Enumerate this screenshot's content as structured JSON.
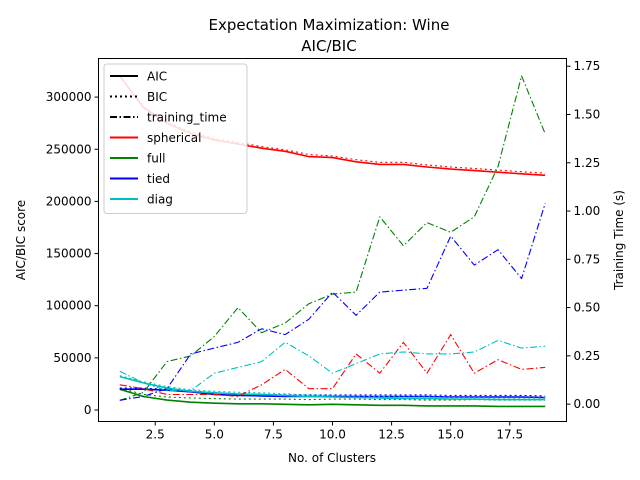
{
  "chart_data": {
    "type": "line",
    "title": "Expectation Maximization: Wine",
    "subtitle": "AIC/BIC",
    "xlabel": "No. of Clusters",
    "ylabel": "AIC/BIC score",
    "y2label": "Training Time (s)",
    "xlim": [
      0.1,
      19.9
    ],
    "ylim": [
      -11000,
      337000
    ],
    "y2lim": [
      -0.09,
      1.79
    ],
    "x_ticks": [
      2.5,
      5.0,
      7.5,
      10.0,
      12.5,
      15.0,
      17.5
    ],
    "y_ticks": [
      0,
      50000,
      100000,
      150000,
      200000,
      250000,
      300000
    ],
    "y2_ticks": [
      0.0,
      0.25,
      0.5,
      0.75,
      1.0,
      1.25,
      1.5,
      1.75
    ],
    "grid": false,
    "legend_position": "top-left",
    "legend": [
      {
        "label": "AIC",
        "color": "#000000",
        "style": "solid",
        "width": 2
      },
      {
        "label": "BIC",
        "color": "#000000",
        "style": "dotted",
        "width": 2
      },
      {
        "label": "training_time",
        "color": "#000000",
        "style": "dashdot",
        "width": 2
      },
      {
        "label": "spherical",
        "color": "#ff0000",
        "style": "solid",
        "width": 2
      },
      {
        "label": "full",
        "color": "#008000",
        "style": "solid",
        "width": 2
      },
      {
        "label": "tied",
        "color": "#0000ff",
        "style": "solid",
        "width": 2
      },
      {
        "label": "diag",
        "color": "#00bfbf",
        "style": "solid",
        "width": 2
      }
    ],
    "x": [
      1,
      2,
      3,
      4,
      5,
      6,
      7,
      8,
      9,
      10,
      11,
      12,
      13,
      14,
      15,
      16,
      17,
      18,
      19
    ],
    "series": [
      {
        "name": "spherical",
        "metric": "AIC",
        "axis": "left",
        "color": "#ff0000",
        "style": "solid",
        "values": [
          320000,
          290000,
          275000,
          265000,
          259000,
          255000,
          251000,
          248000,
          243000,
          242000,
          238000,
          235500,
          235500,
          233000,
          231000,
          229500,
          228000,
          226500,
          225000
        ]
      },
      {
        "name": "spherical",
        "metric": "BIC",
        "axis": "left",
        "color": "#ff0000",
        "style": "dotted",
        "values": [
          320500,
          291000,
          276000,
          266500,
          260500,
          256500,
          252500,
          249500,
          245000,
          243500,
          240000,
          237500,
          237500,
          235000,
          233000,
          231500,
          230000,
          228500,
          227000
        ]
      },
      {
        "name": "full",
        "metric": "AIC",
        "axis": "left",
        "color": "#008000",
        "style": "solid",
        "values": [
          20000,
          13000,
          9500,
          7500,
          6500,
          6000,
          6000,
          5500,
          5000,
          5500,
          5000,
          4500,
          4500,
          4000,
          4000,
          4000,
          3500,
          3500,
          3500
        ]
      },
      {
        "name": "full",
        "metric": "BIC",
        "axis": "left",
        "color": "#008000",
        "style": "dotted",
        "values": [
          21000,
          15000,
          12500,
          11500,
          11000,
          10500,
          10500,
          10500,
          10000,
          10500,
          10500,
          10000,
          10000,
          9500,
          9500,
          10000,
          9500,
          9500,
          9500
        ]
      },
      {
        "name": "tied",
        "metric": "AIC",
        "axis": "left",
        "color": "#0000ff",
        "style": "solid",
        "values": [
          20000,
          20000,
          19000,
          17500,
          15000,
          14000,
          13500,
          13000,
          13000,
          13000,
          13000,
          13000,
          13000,
          13000,
          12500,
          12500,
          12500,
          12500,
          12000
        ]
      },
      {
        "name": "tied",
        "metric": "BIC",
        "axis": "left",
        "color": "#0000ff",
        "style": "dotted",
        "values": [
          21000,
          21000,
          20000,
          18500,
          16500,
          15500,
          15000,
          14500,
          14500,
          14500,
          14500,
          14500,
          14500,
          14500,
          14000,
          14000,
          14000,
          14000,
          13500
        ]
      },
      {
        "name": "diag",
        "metric": "AIC",
        "axis": "left",
        "color": "#00bfbf",
        "style": "solid",
        "values": [
          32000,
          26000,
          21000,
          18000,
          16500,
          15500,
          15000,
          14000,
          13000,
          12500,
          12000,
          11500,
          11000,
          11000,
          10500,
          10500,
          10000,
          10000,
          10000
        ]
      },
      {
        "name": "diag",
        "metric": "BIC",
        "axis": "left",
        "color": "#00bfbf",
        "style": "dotted",
        "values": [
          33000,
          27000,
          22500,
          19500,
          18000,
          17000,
          16500,
          15500,
          14500,
          14000,
          13500,
          13000,
          12500,
          12500,
          12000,
          12000,
          11500,
          11500,
          11500
        ]
      },
      {
        "name": "spherical",
        "metric": "training_time",
        "axis": "right",
        "color": "#ff0000",
        "style": "dashdot",
        "values": [
          0.1,
          0.08,
          0.05,
          0.05,
          0.05,
          0.04,
          0.1,
          0.18,
          0.08,
          0.08,
          0.26,
          0.16,
          0.32,
          0.16,
          0.36,
          0.16,
          0.23,
          0.18,
          0.19
        ]
      },
      {
        "name": "full",
        "metric": "training_time",
        "axis": "right",
        "color": "#008000",
        "style": "dashdot",
        "values": [
          0.02,
          0.06,
          0.22,
          0.25,
          0.35,
          0.5,
          0.37,
          0.42,
          0.52,
          0.57,
          0.58,
          0.97,
          0.82,
          0.94,
          0.89,
          0.97,
          1.23,
          1.7,
          1.4
        ]
      },
      {
        "name": "tied",
        "metric": "training_time",
        "axis": "right",
        "color": "#0000ff",
        "style": "dashdot",
        "values": [
          0.02,
          0.04,
          0.08,
          0.26,
          0.29,
          0.32,
          0.39,
          0.36,
          0.44,
          0.58,
          0.46,
          0.58,
          0.59,
          0.6,
          0.87,
          0.72,
          0.8,
          0.65,
          1.04
        ]
      },
      {
        "name": "diag",
        "metric": "training_time",
        "axis": "right",
        "color": "#00bfbf",
        "style": "dashdot",
        "values": [
          0.17,
          0.11,
          0.07,
          0.07,
          0.16,
          0.19,
          0.22,
          0.32,
          0.25,
          0.16,
          0.21,
          0.26,
          0.27,
          0.26,
          0.26,
          0.27,
          0.33,
          0.29,
          0.3
        ]
      }
    ]
  }
}
